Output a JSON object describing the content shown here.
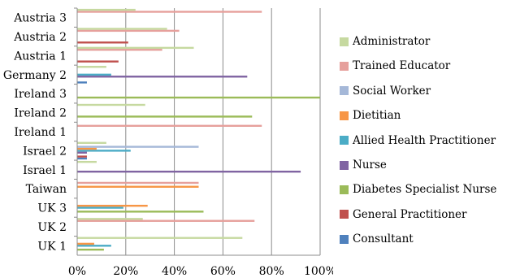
{
  "chart_data": {
    "type": "bar",
    "orientation": "horizontal",
    "grid": true,
    "legend_position": "right",
    "xlim": [
      0,
      100
    ],
    "x_ticks": [
      "0%",
      "20%",
      "40%",
      "60%",
      "80%",
      "100%"
    ],
    "categories": [
      "UK 1",
      "UK 2",
      "UK 3",
      "Taiwan",
      "Israel 1",
      "Israel 2",
      "Ireland 1",
      "Ireland 2",
      "Ireland 3",
      "Germany 2",
      "Austria 1",
      "Austria 2",
      "Austria 3"
    ],
    "series": [
      {
        "name": "Consultant",
        "color": "#4F81BD",
        "values": [
          0,
          0,
          0,
          0,
          0,
          4,
          0,
          0,
          0,
          4,
          0,
          0,
          0
        ]
      },
      {
        "name": "General Practitioner",
        "color": "#C0504D",
        "values": [
          0,
          0,
          0,
          0,
          0,
          4,
          0,
          0,
          0,
          0,
          17,
          21,
          0
        ]
      },
      {
        "name": "Diabetes Specialist Nurse",
        "color": "#9BBB59",
        "values": [
          11,
          0,
          52,
          0,
          0,
          0,
          0,
          72,
          100,
          0,
          0,
          0,
          0
        ]
      },
      {
        "name": "Nurse",
        "color": "#8064A2",
        "values": [
          0,
          0,
          0,
          0,
          92,
          4,
          0,
          0,
          0,
          70,
          0,
          0,
          0
        ]
      },
      {
        "name": "Allied Health Practitioner",
        "color": "#4BACC6",
        "values": [
          14,
          0,
          19,
          0,
          0,
          22,
          0,
          0,
          0,
          14,
          0,
          0,
          0
        ]
      },
      {
        "name": "Dietitian",
        "color": "#F79646",
        "values": [
          7,
          0,
          29,
          50,
          0,
          8,
          0,
          0,
          0,
          0,
          0,
          0,
          0
        ]
      },
      {
        "name": "Social Worker",
        "color": "#A5B8D8",
        "values": [
          0,
          0,
          0,
          0,
          0,
          50,
          0,
          0,
          0,
          0,
          0,
          0,
          0
        ]
      },
      {
        "name": "Trained Educator",
        "color": "#E6A09C",
        "values": [
          0,
          73,
          0,
          50,
          0,
          0,
          76,
          0,
          0,
          0,
          35,
          42,
          76
        ]
      },
      {
        "name": "Administrator",
        "color": "#C6D9A0",
        "values": [
          68,
          27,
          0,
          0,
          8,
          12,
          0,
          28,
          0,
          12,
          48,
          37,
          24
        ]
      }
    ],
    "legend_order": [
      "Administrator",
      "Trained Educator",
      "Social Worker",
      "Dietitian",
      "Allied Health Practitioner",
      "Nurse",
      "Diabetes Specialist Nurse",
      "General Practitioner",
      "Consultant"
    ]
  }
}
